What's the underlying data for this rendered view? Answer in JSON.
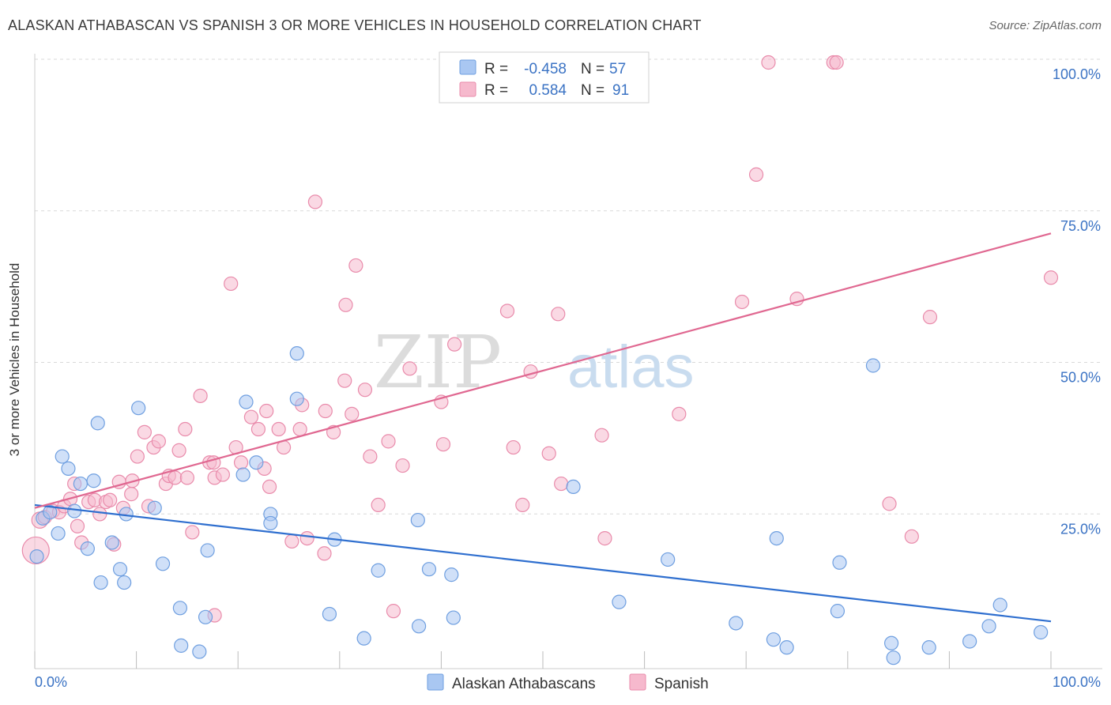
{
  "title": "ALASKAN ATHABASCAN VS SPANISH 3 OR MORE VEHICLES IN HOUSEHOLD CORRELATION CHART",
  "source": "Source: ZipAtlas.com",
  "watermark": {
    "zip": "ZIP",
    "atlas": "atlas"
  },
  "colors": {
    "blue_fill": "#a9c7f2",
    "blue_stroke": "#6f9fe0",
    "blue_line": "#2f6fcf",
    "pink_fill": "#f6b9cd",
    "pink_stroke": "#e98bab",
    "pink_line": "#e06891",
    "value_text": "#3b73c4",
    "grid": "#d9d9d9"
  },
  "legend": {
    "items": [
      {
        "r_label": "R =",
        "r_value": "-0.458",
        "n_label": "N =",
        "n_value": "57"
      },
      {
        "r_label": "R =",
        "r_value": "0.584",
        "n_label": "N =",
        "n_value": "91"
      }
    ]
  },
  "chart_data": {
    "type": "scatter",
    "title": "ALASKAN ATHABASCAN VS SPANISH 3 OR MORE VEHICLES IN HOUSEHOLD CORRELATION CHART",
    "xlabel": "",
    "ylabel": "3 or more Vehicles in Household",
    "xlim": [
      0,
      100
    ],
    "ylim": [
      0,
      102
    ],
    "x_tick_labels": [
      "0.0%",
      "100.0%"
    ],
    "y_ticks": [
      25,
      50,
      75,
      100
    ],
    "y_tick_labels": [
      "25.0%",
      "50.0%",
      "75.0%",
      "100.0%"
    ],
    "grid": true,
    "legend_position": "top-center",
    "series": [
      {
        "name": "Alaskan Athabascans",
        "color": "#a9c7f2",
        "trend": {
          "x": [
            0,
            100
          ],
          "y": [
            27.0,
            7.8
          ]
        },
        "points": [
          {
            "x": 0.2,
            "y": 18.5,
            "s": 1
          },
          {
            "x": 0.8,
            "y": 24.8,
            "s": 1
          },
          {
            "x": 1.5,
            "y": 25.8,
            "s": 1
          },
          {
            "x": 2.3,
            "y": 22.3,
            "s": 1
          },
          {
            "x": 2.7,
            "y": 35.0,
            "s": 1
          },
          {
            "x": 3.3,
            "y": 33.0,
            "s": 1
          },
          {
            "x": 3.9,
            "y": 26.0,
            "s": 1
          },
          {
            "x": 4.5,
            "y": 30.5,
            "s": 1
          },
          {
            "x": 5.2,
            "y": 19.8,
            "s": 1
          },
          {
            "x": 5.8,
            "y": 31.0,
            "s": 1
          },
          {
            "x": 6.2,
            "y": 40.5,
            "s": 1
          },
          {
            "x": 6.5,
            "y": 14.2,
            "s": 1
          },
          {
            "x": 7.6,
            "y": 20.8,
            "s": 1
          },
          {
            "x": 8.4,
            "y": 16.4,
            "s": 1
          },
          {
            "x": 9.0,
            "y": 25.5,
            "s": 1
          },
          {
            "x": 10.2,
            "y": 43.0,
            "s": 1
          },
          {
            "x": 11.8,
            "y": 26.5,
            "s": 1
          },
          {
            "x": 14.4,
            "y": 3.8,
            "s": 1
          },
          {
            "x": 16.8,
            "y": 8.5,
            "s": 1
          },
          {
            "x": 17.0,
            "y": 19.5,
            "s": 1
          },
          {
            "x": 20.5,
            "y": 32.0,
            "s": 1
          },
          {
            "x": 21.8,
            "y": 34.0,
            "s": 1
          },
          {
            "x": 23.2,
            "y": 25.5,
            "s": 1
          },
          {
            "x": 25.8,
            "y": 52.0,
            "s": 1
          },
          {
            "x": 29.5,
            "y": 21.3,
            "s": 1
          },
          {
            "x": 33.8,
            "y": 16.2,
            "s": 1
          },
          {
            "x": 37.7,
            "y": 24.5,
            "s": 1
          },
          {
            "x": 41.2,
            "y": 8.4,
            "s": 1
          },
          {
            "x": 53.0,
            "y": 30.0,
            "s": 1
          },
          {
            "x": 57.5,
            "y": 11.0,
            "s": 1
          },
          {
            "x": 62.3,
            "y": 18.0,
            "s": 1
          },
          {
            "x": 73.0,
            "y": 21.5,
            "s": 1
          },
          {
            "x": 79.0,
            "y": 9.5,
            "s": 1
          },
          {
            "x": 82.5,
            "y": 50.0,
            "s": 1
          },
          {
            "x": 84.5,
            "y": 1.8,
            "s": 1
          },
          {
            "x": 88.0,
            "y": 3.5,
            "s": 1
          },
          {
            "x": 92.0,
            "y": 4.5,
            "s": 1
          },
          {
            "x": 95.0,
            "y": 10.5,
            "s": 1
          },
          {
            "x": 99.0,
            "y": 6.0,
            "s": 1
          },
          {
            "x": 8.8,
            "y": 14.2,
            "s": 1
          },
          {
            "x": 12.6,
            "y": 17.3,
            "s": 1
          },
          {
            "x": 14.3,
            "y": 10.0,
            "s": 1
          },
          {
            "x": 16.2,
            "y": 2.8,
            "s": 1
          },
          {
            "x": 20.8,
            "y": 44.0,
            "s": 1
          },
          {
            "x": 23.2,
            "y": 24.0,
            "s": 1
          },
          {
            "x": 25.8,
            "y": 44.5,
            "s": 1
          },
          {
            "x": 29.0,
            "y": 9.0,
            "s": 1
          },
          {
            "x": 32.4,
            "y": 5.0,
            "s": 1
          },
          {
            "x": 37.8,
            "y": 7.0,
            "s": 1
          },
          {
            "x": 38.8,
            "y": 16.4,
            "s": 1
          },
          {
            "x": 41.0,
            "y": 15.5,
            "s": 1
          },
          {
            "x": 69.0,
            "y": 7.5,
            "s": 1
          },
          {
            "x": 72.7,
            "y": 4.8,
            "s": 1
          },
          {
            "x": 74.0,
            "y": 3.5,
            "s": 1
          },
          {
            "x": 79.2,
            "y": 17.5,
            "s": 1
          },
          {
            "x": 84.3,
            "y": 4.2,
            "s": 1
          },
          {
            "x": 93.9,
            "y": 7.0,
            "s": 1
          }
        ]
      },
      {
        "name": "Spanish",
        "color": "#f6b9cd",
        "trend": {
          "x": [
            0,
            100
          ],
          "y": [
            26.5,
            71.8
          ]
        },
        "points": [
          {
            "x": 0.1,
            "y": 19.5,
            "s": 2
          },
          {
            "x": 0.5,
            "y": 24.5,
            "s": 1.2
          },
          {
            "x": 1.0,
            "y": 25.0,
            "s": 1
          },
          {
            "x": 1.8,
            "y": 26.0,
            "s": 1
          },
          {
            "x": 2.4,
            "y": 25.8,
            "s": 1
          },
          {
            "x": 2.9,
            "y": 26.8,
            "s": 1
          },
          {
            "x": 3.5,
            "y": 28.0,
            "s": 1
          },
          {
            "x": 3.9,
            "y": 30.5,
            "s": 1
          },
          {
            "x": 4.2,
            "y": 23.5,
            "s": 1
          },
          {
            "x": 4.6,
            "y": 20.8,
            "s": 1
          },
          {
            "x": 5.3,
            "y": 27.5,
            "s": 1
          },
          {
            "x": 5.9,
            "y": 27.8,
            "s": 1
          },
          {
            "x": 6.4,
            "y": 25.5,
            "s": 1
          },
          {
            "x": 7.0,
            "y": 27.5,
            "s": 1
          },
          {
            "x": 7.4,
            "y": 27.8,
            "s": 1
          },
          {
            "x": 7.8,
            "y": 20.5,
            "s": 1
          },
          {
            "x": 8.3,
            "y": 30.8,
            "s": 1
          },
          {
            "x": 8.7,
            "y": 26.5,
            "s": 1
          },
          {
            "x": 9.5,
            "y": 28.8,
            "s": 1
          },
          {
            "x": 10.1,
            "y": 35.0,
            "s": 1
          },
          {
            "x": 10.8,
            "y": 39.0,
            "s": 1
          },
          {
            "x": 11.2,
            "y": 26.8,
            "s": 1
          },
          {
            "x": 11.7,
            "y": 36.5,
            "s": 1
          },
          {
            "x": 12.2,
            "y": 37.5,
            "s": 1
          },
          {
            "x": 12.9,
            "y": 30.5,
            "s": 1
          },
          {
            "x": 13.2,
            "y": 31.8,
            "s": 1
          },
          {
            "x": 13.8,
            "y": 31.5,
            "s": 1
          },
          {
            "x": 14.2,
            "y": 36.0,
            "s": 1
          },
          {
            "x": 14.8,
            "y": 39.5,
            "s": 1
          },
          {
            "x": 15.5,
            "y": 22.5,
            "s": 1
          },
          {
            "x": 16.3,
            "y": 45.0,
            "s": 1
          },
          {
            "x": 17.2,
            "y": 34.0,
            "s": 1
          },
          {
            "x": 17.7,
            "y": 31.5,
            "s": 1
          },
          {
            "x": 18.5,
            "y": 32.0,
            "s": 1
          },
          {
            "x": 19.3,
            "y": 63.5,
            "s": 1
          },
          {
            "x": 19.8,
            "y": 36.5,
            "s": 1
          },
          {
            "x": 20.3,
            "y": 34.0,
            "s": 1
          },
          {
            "x": 21.3,
            "y": 41.5,
            "s": 1
          },
          {
            "x": 22.0,
            "y": 39.5,
            "s": 1
          },
          {
            "x": 22.6,
            "y": 33.0,
            "s": 1
          },
          {
            "x": 23.1,
            "y": 30.0,
            "s": 1
          },
          {
            "x": 24.0,
            "y": 39.5,
            "s": 1
          },
          {
            "x": 24.5,
            "y": 36.5,
            "s": 1
          },
          {
            "x": 25.3,
            "y": 21.0,
            "s": 1
          },
          {
            "x": 26.1,
            "y": 39.5,
            "s": 1
          },
          {
            "x": 26.8,
            "y": 21.5,
            "s": 1
          },
          {
            "x": 27.6,
            "y": 77.0,
            "s": 1
          },
          {
            "x": 28.6,
            "y": 42.5,
            "s": 1
          },
          {
            "x": 29.4,
            "y": 39.0,
            "s": 1
          },
          {
            "x": 30.5,
            "y": 47.5,
            "s": 1
          },
          {
            "x": 31.2,
            "y": 42.0,
            "s": 1
          },
          {
            "x": 31.6,
            "y": 66.5,
            "s": 1
          },
          {
            "x": 32.5,
            "y": 46.0,
            "s": 1
          },
          {
            "x": 33.0,
            "y": 35.0,
            "s": 1
          },
          {
            "x": 33.8,
            "y": 27.0,
            "s": 1
          },
          {
            "x": 34.8,
            "y": 37.5,
            "s": 1
          },
          {
            "x": 36.2,
            "y": 33.5,
            "s": 1
          },
          {
            "x": 36.9,
            "y": 49.5,
            "s": 1
          },
          {
            "x": 40.0,
            "y": 44.0,
            "s": 1
          },
          {
            "x": 41.3,
            "y": 53.5,
            "s": 1
          },
          {
            "x": 46.5,
            "y": 59.0,
            "s": 1
          },
          {
            "x": 48.8,
            "y": 49.0,
            "s": 1
          },
          {
            "x": 51.5,
            "y": 58.5,
            "s": 1
          },
          {
            "x": 55.8,
            "y": 38.5,
            "s": 1
          },
          {
            "x": 56.1,
            "y": 21.5,
            "s": 1
          },
          {
            "x": 63.4,
            "y": 42.0,
            "s": 1
          },
          {
            "x": 69.6,
            "y": 60.5,
            "s": 1
          },
          {
            "x": 71.0,
            "y": 81.5,
            "s": 1
          },
          {
            "x": 72.2,
            "y": 100.0,
            "s": 1
          },
          {
            "x": 75.0,
            "y": 61.0,
            "s": 1
          },
          {
            "x": 78.6,
            "y": 100.0,
            "s": 1
          },
          {
            "x": 78.9,
            "y": 100.0,
            "s": 1
          },
          {
            "x": 84.1,
            "y": 27.2,
            "s": 1
          },
          {
            "x": 86.3,
            "y": 21.8,
            "s": 1
          },
          {
            "x": 88.1,
            "y": 58.0,
            "s": 1
          },
          {
            "x": 100.0,
            "y": 64.5,
            "s": 1
          },
          {
            "x": 56.2,
            "y": 100.0,
            "s": 1
          },
          {
            "x": 17.7,
            "y": 8.8,
            "s": 1
          },
          {
            "x": 35.3,
            "y": 9.5,
            "s": 1
          },
          {
            "x": 28.5,
            "y": 19.0,
            "s": 1
          },
          {
            "x": 22.8,
            "y": 42.5,
            "s": 1
          },
          {
            "x": 30.6,
            "y": 60.0,
            "s": 1
          },
          {
            "x": 47.1,
            "y": 36.5,
            "s": 1
          },
          {
            "x": 48.0,
            "y": 27.0,
            "s": 1
          },
          {
            "x": 51.8,
            "y": 30.5,
            "s": 1
          },
          {
            "x": 50.6,
            "y": 35.5,
            "s": 1
          },
          {
            "x": 40.2,
            "y": 37.0,
            "s": 1
          },
          {
            "x": 26.3,
            "y": 43.5,
            "s": 1
          },
          {
            "x": 17.6,
            "y": 34.0,
            "s": 1
          },
          {
            "x": 15.0,
            "y": 31.5,
            "s": 1
          },
          {
            "x": 9.6,
            "y": 31.0,
            "s": 1
          }
        ]
      }
    ]
  }
}
